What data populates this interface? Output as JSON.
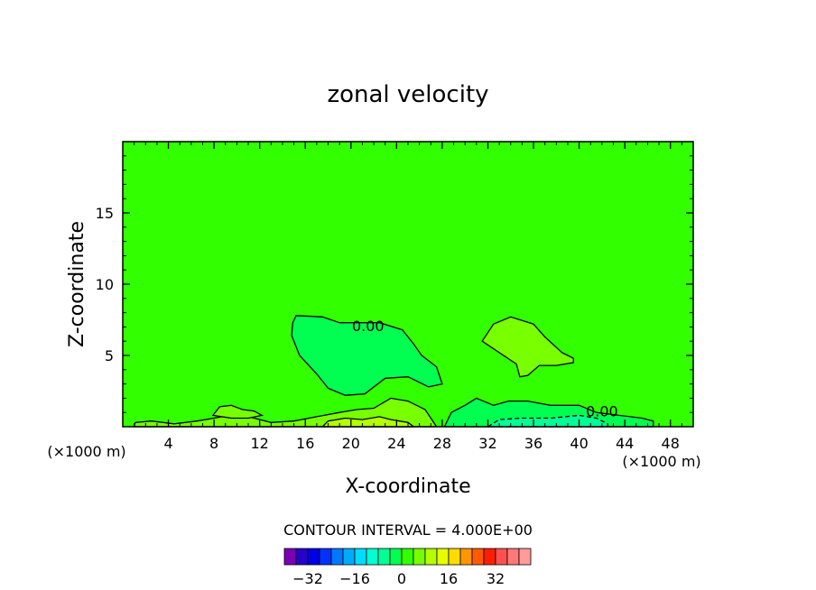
{
  "chart_data": {
    "type": "contour",
    "title": "zonal velocity",
    "xlabel": "X-coordinate",
    "ylabel": "Z-coordinate",
    "x_unit_left": "(×1000 m)",
    "x_unit_right": "(×1000 m)",
    "xlim": [
      0,
      50
    ],
    "ylim": [
      0,
      20
    ],
    "x_ticks": [
      4,
      8,
      12,
      16,
      20,
      24,
      28,
      32,
      36,
      40,
      44,
      48
    ],
    "y_ticks": [
      5,
      10,
      15
    ],
    "contour_interval_text": "CONTOUR INTERVAL = 4.000E+00",
    "contour_interval": 4.0,
    "background_value": 2,
    "contour_labels": [
      {
        "text": "0.00",
        "x": 21.5,
        "z": 7.1
      },
      {
        "text": "0.00",
        "x": 42.0,
        "z": 1.1
      }
    ],
    "regions": [
      {
        "name": "negative-region-central",
        "value": -2,
        "outline": [
          [
            15.2,
            7.8
          ],
          [
            17.5,
            7.7
          ],
          [
            19.0,
            7.3
          ],
          [
            22.5,
            7.3
          ],
          [
            24.5,
            6.8
          ],
          [
            25.5,
            5.8
          ],
          [
            26.2,
            5.0
          ],
          [
            27.5,
            4.2
          ],
          [
            28.0,
            3.0
          ],
          [
            26.8,
            2.8
          ],
          [
            25.0,
            3.5
          ],
          [
            23.0,
            3.4
          ],
          [
            21.2,
            2.3
          ],
          [
            19.5,
            2.2
          ],
          [
            18.0,
            2.7
          ],
          [
            17.0,
            3.7
          ],
          [
            15.5,
            5.0
          ],
          [
            14.8,
            6.4
          ],
          [
            14.9,
            7.3
          ]
        ]
      },
      {
        "name": "positive-region-upper-right",
        "value": 6,
        "outline": [
          [
            31.5,
            6.0
          ],
          [
            32.5,
            7.2
          ],
          [
            34.0,
            7.7
          ],
          [
            36.0,
            7.2
          ],
          [
            37.0,
            6.3
          ],
          [
            38.5,
            5.2
          ],
          [
            39.5,
            4.8
          ],
          [
            39.5,
            4.5
          ],
          [
            38.0,
            4.3
          ],
          [
            36.5,
            4.3
          ],
          [
            35.5,
            3.6
          ],
          [
            34.8,
            3.5
          ],
          [
            34.5,
            4.4
          ],
          [
            33.0,
            5.2
          ]
        ]
      },
      {
        "name": "negative-region-lower-right",
        "value": -2,
        "outline": [
          [
            28.2,
            0.0
          ],
          [
            28.8,
            1.0
          ],
          [
            30.0,
            1.5
          ],
          [
            31.0,
            2.0
          ],
          [
            32.5,
            1.5
          ],
          [
            33.8,
            1.8
          ],
          [
            35.5,
            1.8
          ],
          [
            37.5,
            1.5
          ],
          [
            40.0,
            1.5
          ],
          [
            41.5,
            1.0
          ],
          [
            43.5,
            0.8
          ],
          [
            45.5,
            0.6
          ],
          [
            46.5,
            0.4
          ],
          [
            46.5,
            0.0
          ]
        ]
      },
      {
        "name": "negative-region-near-surface",
        "value": -6,
        "outline": [
          [
            32.0,
            0.0
          ],
          [
            33.0,
            0.5
          ],
          [
            35.0,
            0.6
          ],
          [
            37.5,
            0.6
          ],
          [
            40.0,
            0.8
          ],
          [
            41.5,
            0.6
          ],
          [
            42.5,
            0.2
          ],
          [
            42.5,
            0.0
          ]
        ]
      },
      {
        "name": "positive-region-surface-strip",
        "value": 6,
        "outline": [
          [
            1.0,
            0.0
          ],
          [
            1.1,
            0.3
          ],
          [
            2.5,
            0.4
          ],
          [
            4.5,
            0.2
          ],
          [
            6.5,
            0.4
          ],
          [
            8.0,
            0.6
          ],
          [
            10.0,
            0.9
          ],
          [
            11.5,
            0.6
          ],
          [
            13.0,
            0.3
          ],
          [
            15.0,
            0.4
          ],
          [
            17.0,
            0.7
          ],
          [
            19.0,
            1.0
          ],
          [
            20.5,
            1.2
          ],
          [
            22.0,
            1.3
          ],
          [
            23.5,
            2.0
          ],
          [
            25.0,
            1.8
          ],
          [
            26.5,
            1.2
          ],
          [
            27.0,
            0.6
          ],
          [
            27.5,
            0.0
          ]
        ]
      },
      {
        "name": "positive-region-surface-center",
        "value": 10,
        "outline": [
          [
            17.5,
            0.0
          ],
          [
            18.0,
            0.4
          ],
          [
            19.5,
            0.6
          ],
          [
            21.0,
            0.5
          ],
          [
            22.5,
            0.7
          ],
          [
            23.5,
            0.5
          ],
          [
            25.0,
            0.3
          ],
          [
            25.5,
            0.0
          ]
        ]
      },
      {
        "name": "positive-region-left-blob",
        "value": 6,
        "outline": [
          [
            7.9,
            0.8
          ],
          [
            8.5,
            1.4
          ],
          [
            9.5,
            1.5
          ],
          [
            10.5,
            1.2
          ],
          [
            11.5,
            1.1
          ],
          [
            12.2,
            0.8
          ],
          [
            11.0,
            0.6
          ],
          [
            9.5,
            0.6
          ]
        ]
      }
    ],
    "colorbar": {
      "tick_labels": [
        "-32",
        "-16",
        "0",
        "16",
        "32"
      ],
      "tick_values": [
        -32,
        -16,
        0,
        16,
        32
      ],
      "colors": [
        "#7b00b4",
        "#2800c8",
        "#0000e6",
        "#0032ff",
        "#0078ff",
        "#00aaff",
        "#00dcff",
        "#00ffd2",
        "#00ff96",
        "#00ff50",
        "#32ff00",
        "#78ff00",
        "#b4ff00",
        "#e6ff00",
        "#ffdc00",
        "#ff9600",
        "#ff5a00",
        "#ff1e00",
        "#ff5050",
        "#ff7878",
        "#ff9b9b"
      ]
    }
  }
}
